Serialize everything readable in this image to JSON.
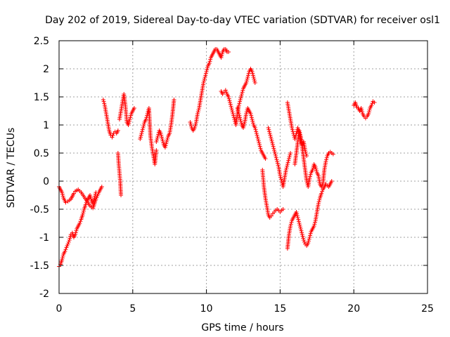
{
  "chart_data": {
    "type": "scatter",
    "title": "Day 202 of 2019, Sidereal Day-to-day VTEC variation (SDTVAR) for receiver osl1",
    "xlabel": "GPS time / hours",
    "ylabel": "SDTVAR / TECUs",
    "xlim": [
      0,
      25
    ],
    "ylim": [
      -2,
      2.5
    ],
    "grid": true,
    "marker": "+",
    "color": "#ff0000",
    "x_ticks": [
      "0",
      "5",
      "10",
      "15",
      "20",
      "25"
    ],
    "y_ticks": [
      "-2",
      "-1.5",
      "-1",
      "-0.5",
      "0",
      "0.5",
      "1",
      "1.5",
      "2",
      "2.5"
    ],
    "x_tick_values": [
      0,
      5,
      10,
      15,
      20,
      25
    ],
    "y_tick_values": [
      -2,
      -1.5,
      -1,
      -0.5,
      0,
      0.5,
      1,
      1.5,
      2,
      2.5
    ],
    "series": [
      {
        "name": "SDTVAR",
        "segments": [
          {
            "x": [
              0.0,
              0.1,
              0.2,
              0.3,
              0.45,
              0.6,
              0.8,
              1.0,
              1.1,
              1.3,
              1.5,
              1.7,
              1.9,
              2.1,
              2.3,
              2.5,
              2.7,
              2.8,
              2.9
            ],
            "y": [
              -0.1,
              -0.15,
              -0.2,
              -0.3,
              -0.38,
              -0.36,
              -0.32,
              -0.22,
              -0.18,
              -0.15,
              -0.2,
              -0.28,
              -0.36,
              -0.44,
              -0.48,
              -0.32,
              -0.2,
              -0.15,
              -0.1
            ]
          },
          {
            "x": [
              0.0,
              0.1,
              0.2,
              0.3,
              0.4,
              0.5,
              0.6,
              0.7,
              0.8,
              0.9,
              1.0,
              1.1,
              1.2,
              1.3,
              1.4,
              1.5,
              1.6,
              1.7,
              1.8,
              1.9,
              2.0,
              2.1,
              2.2,
              2.3,
              2.4,
              2.5
            ],
            "y": [
              -1.52,
              -1.48,
              -1.4,
              -1.3,
              -1.25,
              -1.18,
              -1.12,
              -1.05,
              -0.95,
              -0.92,
              -1.0,
              -0.95,
              -0.85,
              -0.8,
              -0.75,
              -0.68,
              -0.6,
              -0.5,
              -0.42,
              -0.35,
              -0.3,
              -0.25,
              -0.35,
              -0.4,
              -0.3,
              -0.2
            ]
          },
          {
            "x": [
              3.0,
              3.1,
              3.2,
              3.3,
              3.4,
              3.5,
              3.6,
              3.7,
              3.8,
              3.9,
              4.0
            ],
            "y": [
              1.45,
              1.35,
              1.2,
              1.05,
              0.9,
              0.82,
              0.78,
              0.85,
              0.88,
              0.85,
              0.9
            ]
          },
          {
            "x": [
              4.0,
              4.05,
              4.1,
              4.15,
              4.2
            ],
            "y": [
              0.5,
              0.3,
              0.15,
              0.0,
              -0.25
            ]
          },
          {
            "x": [
              4.1,
              4.2,
              4.3,
              4.4,
              4.5,
              4.6,
              4.7,
              4.8,
              4.9,
              5.0,
              5.1
            ],
            "y": [
              1.1,
              1.25,
              1.4,
              1.55,
              1.35,
              1.05,
              1.0,
              1.1,
              1.2,
              1.25,
              1.3
            ]
          },
          {
            "x": [
              5.5,
              5.6,
              5.7,
              5.8,
              5.9,
              6.0,
              6.1,
              6.2,
              6.3,
              6.4,
              6.5,
              6.6
            ],
            "y": [
              0.75,
              0.85,
              0.95,
              1.05,
              1.1,
              1.2,
              1.3,
              0.8,
              0.6,
              0.45,
              0.3,
              0.55
            ]
          },
          {
            "x": [
              6.6,
              6.7,
              6.8,
              6.9,
              7.0,
              7.1,
              7.2,
              7.3,
              7.4,
              7.5,
              7.6,
              7.7,
              7.8
            ],
            "y": [
              0.7,
              0.8,
              0.9,
              0.85,
              0.75,
              0.65,
              0.6,
              0.7,
              0.8,
              0.85,
              1.0,
              1.2,
              1.45
            ]
          },
          {
            "x": [
              8.9,
              9.0,
              9.1,
              9.2,
              9.3,
              9.4,
              9.5,
              9.6,
              9.7,
              9.8,
              9.9,
              10.0,
              10.1,
              10.2,
              10.3,
              10.4,
              10.5,
              10.6,
              10.7,
              10.8,
              10.9,
              11.0,
              11.1,
              11.2,
              11.3,
              11.4,
              11.5
            ],
            "y": [
              1.05,
              0.95,
              0.9,
              0.95,
              1.05,
              1.2,
              1.3,
              1.45,
              1.6,
              1.75,
              1.85,
              1.95,
              2.05,
              2.1,
              2.2,
              2.25,
              2.3,
              2.35,
              2.35,
              2.3,
              2.25,
              2.2,
              2.3,
              2.35,
              2.35,
              2.3,
              2.3
            ]
          },
          {
            "x": [
              11.0,
              11.1,
              11.2,
              11.3,
              11.4,
              11.5,
              11.6,
              11.7,
              11.8,
              11.9,
              12.0,
              12.1,
              12.2,
              12.3,
              12.4,
              12.5,
              12.6,
              12.7,
              12.8,
              12.9,
              13.0,
              13.1,
              13.2,
              13.3
            ],
            "y": [
              1.6,
              1.55,
              1.58,
              1.62,
              1.55,
              1.5,
              1.4,
              1.3,
              1.2,
              1.1,
              1.0,
              1.2,
              1.35,
              1.45,
              1.55,
              1.65,
              1.7,
              1.75,
              1.85,
              1.95,
              2.0,
              1.95,
              1.85,
              1.75
            ]
          },
          {
            "x": [
              12.1,
              12.2,
              12.3,
              12.4,
              12.5,
              12.6,
              12.7,
              12.8,
              12.9,
              13.0,
              13.1,
              13.2,
              13.3,
              13.4,
              13.5,
              13.6,
              13.7,
              13.8,
              13.9,
              14.0
            ],
            "y": [
              1.3,
              1.2,
              1.1,
              1.0,
              0.95,
              1.05,
              1.2,
              1.3,
              1.25,
              1.2,
              1.1,
              1.0,
              0.95,
              0.85,
              0.75,
              0.65,
              0.55,
              0.5,
              0.45,
              0.4
            ]
          },
          {
            "x": [
              13.8,
              13.9,
              14.0,
              14.1,
              14.2,
              14.3,
              14.4,
              14.5,
              14.6,
              14.7,
              14.8,
              14.9,
              15.0,
              15.1,
              15.2
            ],
            "y": [
              0.2,
              -0.1,
              -0.3,
              -0.45,
              -0.6,
              -0.65,
              -0.62,
              -0.58,
              -0.55,
              -0.52,
              -0.5,
              -0.52,
              -0.55,
              -0.52,
              -0.5
            ]
          },
          {
            "x": [
              14.2,
              14.3,
              14.4,
              14.5,
              14.6,
              14.7,
              14.8,
              14.9,
              15.0,
              15.1,
              15.2,
              15.3,
              15.4,
              15.5,
              15.6,
              15.7
            ],
            "y": [
              0.95,
              0.85,
              0.75,
              0.65,
              0.55,
              0.45,
              0.35,
              0.25,
              0.1,
              0.0,
              -0.1,
              0.05,
              0.2,
              0.3,
              0.4,
              0.5
            ]
          },
          {
            "x": [
              15.5,
              15.6,
              15.7,
              15.8,
              15.9,
              16.0,
              16.1,
              16.2,
              16.3,
              16.4,
              16.5,
              16.6,
              16.7,
              16.8
            ],
            "y": [
              1.4,
              1.25,
              1.1,
              0.95,
              0.85,
              0.75,
              0.85,
              0.95,
              0.85,
              0.7,
              0.65,
              0.7,
              0.55,
              0.45
            ]
          },
          {
            "x": [
              15.5,
              15.6,
              15.7,
              15.8,
              15.9,
              16.0,
              16.1,
              16.2,
              16.3,
              16.4,
              16.5,
              16.6,
              16.7,
              16.8,
              16.9,
              17.0,
              17.1
            ],
            "y": [
              -1.2,
              -0.95,
              -0.8,
              -0.7,
              -0.65,
              -0.6,
              -0.55,
              -0.65,
              -0.75,
              -0.85,
              -0.95,
              -1.05,
              -1.12,
              -1.15,
              -1.1,
              -1.0,
              -0.9
            ]
          },
          {
            "x": [
              16.0,
              16.1,
              16.2,
              16.3,
              16.4,
              16.5,
              16.6,
              16.7,
              16.8,
              16.9,
              17.0,
              17.1,
              17.2,
              17.3,
              17.4,
              17.5,
              17.6,
              17.7,
              17.8,
              17.9,
              18.0,
              18.1,
              18.2,
              18.3,
              18.4,
              18.5,
              18.6
            ],
            "y": [
              0.3,
              0.5,
              0.7,
              0.9,
              0.8,
              0.6,
              0.4,
              0.2,
              0.0,
              -0.1,
              0.05,
              0.15,
              0.2,
              0.3,
              0.25,
              0.15,
              0.1,
              -0.05,
              -0.1,
              -0.05,
              0.2,
              0.35,
              0.45,
              0.5,
              0.52,
              0.5,
              0.48
            ]
          },
          {
            "x": [
              17.1,
              17.2,
              17.3,
              17.4,
              17.5,
              17.6,
              17.7,
              17.8,
              17.9,
              18.0,
              18.1,
              18.2,
              18.3,
              18.4,
              18.5
            ],
            "y": [
              -0.9,
              -0.85,
              -0.8,
              -0.7,
              -0.55,
              -0.4,
              -0.3,
              -0.22,
              -0.15,
              -0.1,
              -0.05,
              -0.08,
              -0.1,
              -0.05,
              0.0
            ]
          },
          {
            "x": [
              20.0,
              20.1,
              20.2,
              20.3,
              20.4,
              20.5,
              20.6,
              20.7,
              20.8,
              20.9,
              21.0,
              21.1,
              21.2,
              21.3,
              21.4
            ],
            "y": [
              1.35,
              1.4,
              1.32,
              1.3,
              1.25,
              1.3,
              1.2,
              1.15,
              1.12,
              1.15,
              1.2,
              1.3,
              1.35,
              1.42,
              1.4
            ]
          }
        ]
      }
    ]
  }
}
